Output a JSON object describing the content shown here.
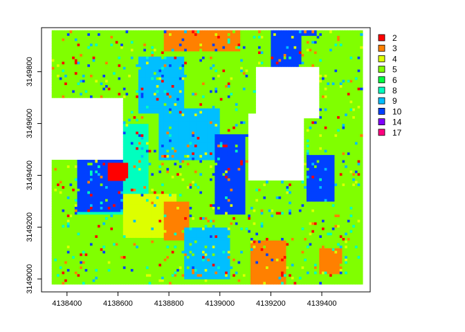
{
  "chart_data": {
    "type": "heatmap",
    "title": "",
    "xlabel": "",
    "ylabel": "",
    "xlim": [
      4138300,
      4139590
    ],
    "ylim": [
      3148950,
      3149970
    ],
    "x_ticks": [
      4138400,
      4138600,
      4138800,
      4139000,
      4139200,
      4139400
    ],
    "y_ticks": [
      3149000,
      3149200,
      3149400,
      3149600,
      3149800
    ],
    "legend": {
      "position": "right",
      "entries": [
        {
          "label": "2",
          "color": "#FF0000"
        },
        {
          "label": "3",
          "color": "#FF8000"
        },
        {
          "label": "4",
          "color": "#DDFF00"
        },
        {
          "label": "5",
          "color": "#80FF00"
        },
        {
          "label": "6",
          "color": "#00FF40"
        },
        {
          "label": "8",
          "color": "#00FFBF"
        },
        {
          "label": "9",
          "color": "#00BFFF"
        },
        {
          "label": "10",
          "color": "#0040FF"
        },
        {
          "label": "14",
          "color": "#8000FF"
        },
        {
          "label": "17",
          "color": "#FF0080"
        }
      ]
    },
    "regions": [
      {
        "class": "5",
        "x": [
          4138340,
          4139560
        ],
        "y": [
          3148980,
          3149960
        ]
      },
      {
        "class": "8",
        "x": [
          4138440,
          4138720
        ],
        "y": [
          3149250,
          3149600
        ]
      },
      {
        "class": "10",
        "x": [
          4138440,
          4138620
        ],
        "y": [
          3149260,
          3149460
        ]
      },
      {
        "class": "2",
        "x": [
          4138560,
          4138640
        ],
        "y": [
          3149380,
          3149450
        ]
      },
      {
        "class": "4",
        "x": [
          4138620,
          4138830
        ],
        "y": [
          3149160,
          3149330
        ]
      },
      {
        "class": "9",
        "x": [
          4138680,
          4138860
        ],
        "y": [
          3149640,
          3149860
        ]
      },
      {
        "class": "9",
        "x": [
          4138760,
          4139000
        ],
        "y": [
          3149460,
          3149660
        ]
      },
      {
        "class": "3",
        "x": [
          4138780,
          4138880
        ],
        "y": [
          3149150,
          3149300
        ]
      },
      {
        "class": "3",
        "x": [
          4138780,
          4139080
        ],
        "y": [
          3149880,
          3149960
        ]
      },
      {
        "class": "10",
        "x": [
          4138980,
          4139100
        ],
        "y": [
          3149250,
          3149560
        ]
      },
      {
        "class": "9",
        "x": [
          4138860,
          4139040
        ],
        "y": [
          3149000,
          3149200
        ]
      },
      {
        "class": "3",
        "x": [
          4139120,
          4139260
        ],
        "y": [
          3148980,
          3149150
        ]
      },
      {
        "class": "10",
        "x": [
          4139200,
          4139380
        ],
        "y": [
          3149800,
          3149960
        ]
      },
      {
        "class": "5",
        "x": [
          4139320,
          4139440
        ],
        "y": [
          3149560,
          3149940
        ]
      },
      {
        "class": "10",
        "x": [
          4139340,
          4139450
        ],
        "y": [
          3149300,
          3149480
        ]
      },
      {
        "class": "3",
        "x": [
          4139390,
          4139480
        ],
        "y": [
          3149020,
          3149120
        ]
      }
    ],
    "empty_regions": [
      {
        "x": [
          4139140,
          4139390
        ],
        "y": [
          3149620,
          3149820
        ]
      },
      {
        "x": [
          4139110,
          4139330
        ],
        "y": [
          3149380,
          3149640
        ]
      },
      {
        "x": [
          4138330,
          4138620
        ],
        "y": [
          3149460,
          3149700
        ]
      }
    ]
  }
}
